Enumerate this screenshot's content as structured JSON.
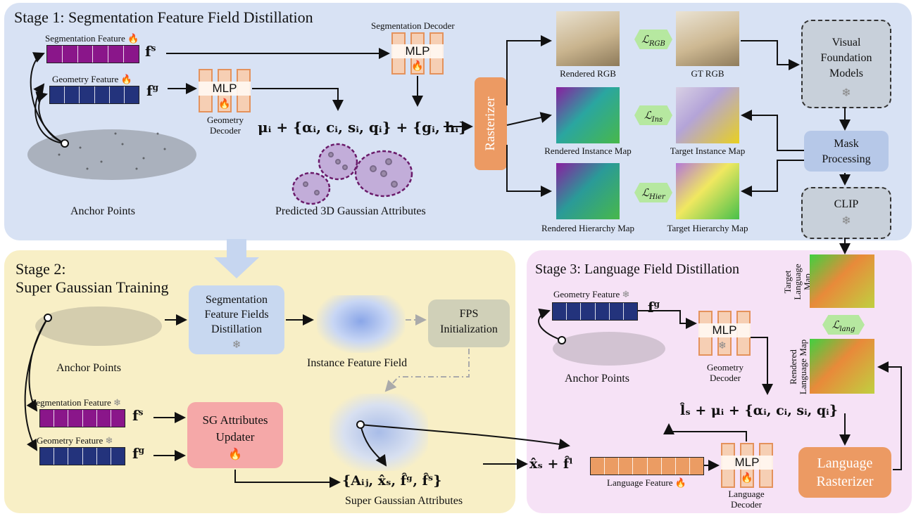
{
  "stage1": {
    "title": "Stage 1: Segmentation Feature Field Distillation",
    "seg_feature_label": "Segmentation Feature",
    "geo_feature_label": "Geometry Feature",
    "fs": "f",
    "fs_sup": "s",
    "fg": "f",
    "fg_sup": "g",
    "seg_decoder_label": "Segmentation Decoder",
    "mlp": "MLP",
    "geo_decoder_label": "Geometry Decoder",
    "formula": "μᵢ + {αᵢ, cᵢ, sᵢ, qᵢ} + {gᵢ, hᵢ}",
    "predicted_label": "Predicted 3D Gaussian Attributes",
    "anchor_label": "Anchor Points",
    "rasterizer": "Rasterizer",
    "rendered_rgb": "Rendered RGB",
    "gt_rgb": "GT RGB",
    "rendered_instance": "Rendered Instance Map",
    "target_instance": "Target Instance Map",
    "rendered_hierarchy": "Rendered Hierarchy Map",
    "target_hierarchy": "Target Hierarchy Map",
    "loss_rgb": "ℒ",
    "loss_rgb_sub": "RGB",
    "loss_ins": "ℒ",
    "loss_ins_sub": "Ins",
    "loss_hier": "ℒ",
    "loss_hier_sub": "Hier",
    "vfm": "Visual Foundation Models",
    "mask_processing": "Mask Processing",
    "clip": "CLIP"
  },
  "stage2": {
    "title_line1": "Stage 2:",
    "title_line2": "Super Gaussian Training",
    "anchor_label": "Anchor Points",
    "seg_distill": "Segmentation Feature Fields Distillation",
    "instance_field": "Instance Feature Field",
    "fps": "FPS Initialization",
    "seg_feature_label": "Segmentation Feature",
    "geo_feature_label": "Geometry Feature",
    "sg_updater": "SG Attributes Updater",
    "sg_attr_formula": "{Aᵢⱼ, x̂ₛ, f̂ᵍ, f̂ˢ}",
    "sg_attr_label": "Super Gaussian Attributes"
  },
  "stage3": {
    "title": "Stage 3: Language Field Distillation",
    "geo_feature_label": "Geometry Feature",
    "fg": "f",
    "fg_sup": "g",
    "mlp": "MLP",
    "geo_decoder_label": "Geometry Decoder",
    "anchor_label": "Anchor Points",
    "target_lang_map": "Target Language Map",
    "rendered_lang_map": "Rendered Language Map",
    "loss_lang": "ℒ",
    "loss_lang_sub": "lang",
    "formula": "l̂ₛ + μᵢ + {αᵢ, cᵢ, sᵢ, qᵢ}",
    "input_formula": "x̂ₛ + f̂ˡ",
    "lang_feature_label": "Language Feature",
    "lang_decoder_label": "Language Decoder",
    "lang_rasterizer": "Language Rasterizer"
  },
  "colors": {
    "stage1_bg": "#d8e2f4",
    "stage2_bg": "#f8efc6",
    "stage3_bg": "#f6e2f6",
    "seg_feature": "#8a168a",
    "geo_feature": "#23337c",
    "lang_feature": "#eb9c63",
    "rasterizer": "#ec9a63",
    "loss": "#b6e8a0"
  },
  "icons": {
    "trainable": "flame-icon",
    "frozen": "snowflake-icon"
  }
}
